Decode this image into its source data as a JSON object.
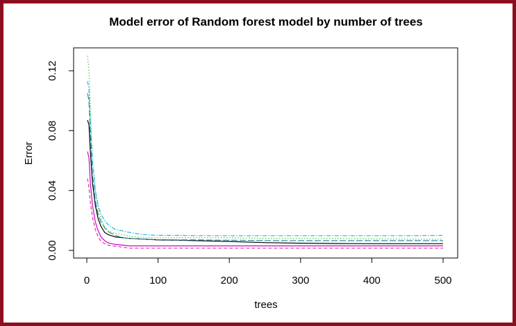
{
  "chart_data": {
    "type": "line",
    "title": "Model error of Random forest model by number of trees",
    "xlabel": "trees",
    "ylabel": "Error",
    "xlim": [
      0,
      500
    ],
    "ylim": [
      0.0,
      0.13
    ],
    "x_ticks": [
      0,
      100,
      200,
      300,
      400,
      500
    ],
    "x_tick_labels": [
      "0",
      "100",
      "200",
      "300",
      "400",
      "500"
    ],
    "y_ticks": [
      0.0,
      0.04,
      0.08,
      0.12
    ],
    "y_tick_labels": [
      "0.00",
      "0.04",
      "0.08",
      "0.12"
    ],
    "grid": false,
    "legend": "none",
    "series": [
      {
        "color": "#000000",
        "dash": "solid",
        "x": [
          1,
          3,
          5,
          8,
          12,
          16,
          20,
          25,
          30,
          40,
          50,
          60,
          80,
          100,
          130,
          160,
          200,
          250,
          300,
          350,
          400,
          450,
          500
        ],
        "values": [
          0.087,
          0.084,
          0.066,
          0.045,
          0.03,
          0.021,
          0.016,
          0.012,
          0.0105,
          0.009,
          0.0085,
          0.008,
          0.0075,
          0.007,
          0.0068,
          0.0064,
          0.006,
          0.0052,
          0.0048,
          0.0046,
          0.0045,
          0.0045,
          0.0045
        ]
      },
      {
        "color": "#e0339a",
        "dash": "dashed",
        "x": [
          1,
          3,
          5,
          8,
          12,
          16,
          20,
          25,
          30,
          40,
          50,
          60,
          80,
          100,
          130,
          160,
          200,
          250,
          300,
          350,
          400,
          450,
          500
        ],
        "values": [
          0.048,
          0.042,
          0.032,
          0.022,
          0.014,
          0.009,
          0.006,
          0.0045,
          0.0035,
          0.0028,
          0.0022,
          0.0015,
          0.0015,
          0.0015,
          0.0015,
          0.0015,
          0.0015,
          0.0015,
          0.0015,
          0.0015,
          0.0015,
          0.0015,
          0.0015
        ]
      },
      {
        "color": "#4ccd33",
        "dash": "dotted",
        "x": [
          1,
          3,
          5,
          8,
          12,
          16,
          20,
          25,
          30,
          40,
          50,
          60,
          80,
          100,
          130,
          160,
          200,
          250,
          300,
          350,
          400,
          450,
          500
        ],
        "values": [
          0.13,
          0.12,
          0.095,
          0.06,
          0.04,
          0.028,
          0.021,
          0.016,
          0.013,
          0.0115,
          0.0105,
          0.0095,
          0.0085,
          0.0085,
          0.0085,
          0.0085,
          0.0085,
          0.008,
          0.008,
          0.008,
          0.0078,
          0.0075,
          0.0075
        ]
      },
      {
        "color": "#1fb5e2",
        "dash": "dashdot",
        "x": [
          1,
          3,
          5,
          8,
          12,
          16,
          20,
          25,
          30,
          40,
          50,
          60,
          80,
          100,
          130,
          160,
          200,
          250,
          300,
          350,
          400,
          450,
          500
        ],
        "values": [
          0.113,
          0.108,
          0.085,
          0.06,
          0.04,
          0.03,
          0.024,
          0.02,
          0.017,
          0.014,
          0.013,
          0.012,
          0.0105,
          0.01,
          0.01,
          0.0098,
          0.0098,
          0.0098,
          0.0098,
          0.0098,
          0.0098,
          0.0098,
          0.01
        ]
      },
      {
        "color": "#2e8c99",
        "dash": "longdash",
        "x": [
          1,
          3,
          5,
          8,
          12,
          16,
          20,
          25,
          30,
          40,
          50,
          60,
          80,
          100,
          130,
          160,
          200,
          250,
          300,
          350,
          400,
          450,
          500
        ],
        "values": [
          0.105,
          0.1,
          0.078,
          0.05,
          0.033,
          0.024,
          0.019,
          0.015,
          0.0125,
          0.01,
          0.0085,
          0.008,
          0.0075,
          0.0072,
          0.007,
          0.007,
          0.0068,
          0.0066,
          0.0065,
          0.0065,
          0.0065,
          0.0065,
          0.0065
        ]
      },
      {
        "color": "#cc00cc",
        "dash": "solid",
        "x": [
          1,
          3,
          5,
          8,
          12,
          16,
          20,
          25,
          30,
          40,
          50,
          60,
          80,
          100,
          130,
          160,
          200,
          250,
          300,
          350,
          400,
          450,
          500
        ],
        "values": [
          0.066,
          0.062,
          0.045,
          0.03,
          0.019,
          0.013,
          0.009,
          0.0065,
          0.005,
          0.004,
          0.0035,
          0.003,
          0.003,
          0.003,
          0.003,
          0.003,
          0.003,
          0.003,
          0.003,
          0.003,
          0.003,
          0.003,
          0.003
        ]
      }
    ]
  }
}
